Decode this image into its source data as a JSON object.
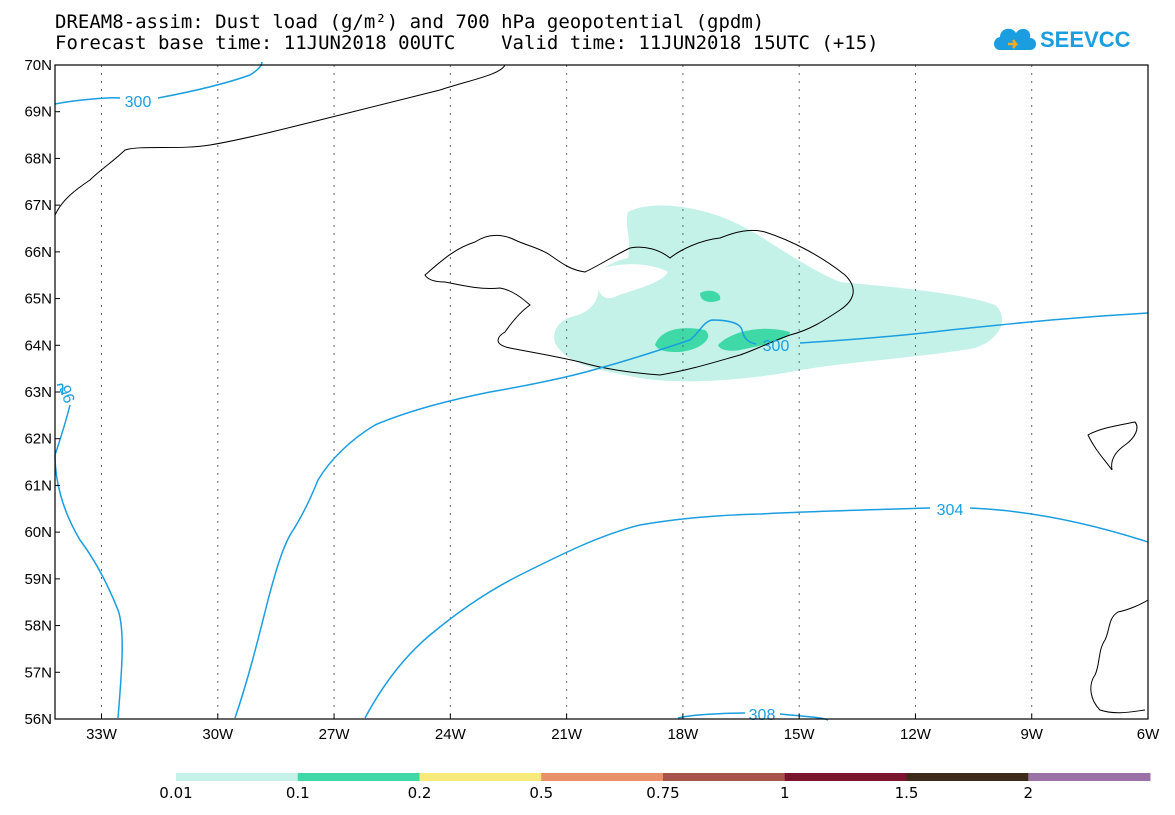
{
  "header": {
    "title_line1": "DREAM8-assim: Dust load (g/m²) and 700 hPa geopotential (gpdm)",
    "title_line2": "Forecast base time: 11JUN2018 00UTC    Valid time: 11JUN2018 15UTC (+15)"
  },
  "logo": {
    "text": "SEEVCCC",
    "icon": "cloud-logo-icon",
    "color": "#1a9ee0"
  },
  "map": {
    "lat_labels": [
      "70N",
      "69N",
      "68N",
      "67N",
      "66N",
      "65N",
      "64N",
      "63N",
      "62N",
      "61N",
      "60N",
      "59N",
      "58N",
      "57N",
      "56N"
    ],
    "lon_labels": [
      "33W",
      "30W",
      "27W",
      "24W",
      "21W",
      "18W",
      "15W",
      "12W",
      "9W",
      "6W"
    ],
    "lat_values": [
      70,
      69,
      68,
      67,
      66,
      65,
      64,
      63,
      62,
      61,
      60,
      59,
      58,
      57,
      56
    ],
    "lon_values": [
      -33,
      -30,
      -27,
      -24,
      -21,
      -18,
      -15,
      -12,
      -9,
      -6
    ],
    "lat_range": [
      56,
      70
    ],
    "lon_range": [
      -34.2,
      -6
    ],
    "contour_color": "#1a9ee0",
    "contour_labels": [
      "300",
      "300",
      "96",
      "304",
      "308"
    ],
    "grid": "dotted"
  },
  "colorbar": {
    "labels": [
      "0.01",
      "0.1",
      "0.2",
      "0.5",
      "0.75",
      "1",
      "1.5",
      "2"
    ],
    "colors": [
      "#c4f2e8",
      "#3fd9a8",
      "#f7e97a",
      "#e8916a",
      "#a85448",
      "#7a1530",
      "#3e2a18",
      "#9c72a6"
    ]
  }
}
